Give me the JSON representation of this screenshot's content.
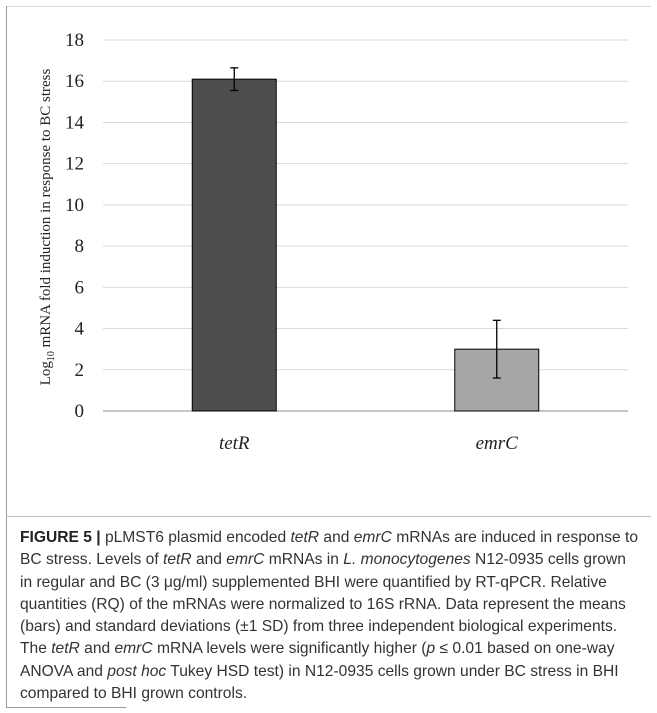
{
  "chart_data": {
    "type": "bar",
    "categories": [
      "tetR",
      "emrC"
    ],
    "values": [
      16.1,
      3.0
    ],
    "errors": [
      0.55,
      1.4
    ],
    "bar_colors": [
      "#4d4d4d",
      "#a6a6a6"
    ],
    "ylim": [
      0,
      18
    ],
    "yticks": [
      "0",
      "2",
      "4",
      "6",
      "8",
      "10",
      "12",
      "14",
      "16",
      "18"
    ],
    "ylabel_prefix": "Log",
    "ylabel_sub": "10",
    "ylabel_rest": " mRNA fold induction in response to BC stress",
    "grid": true
  },
  "caption": {
    "label": "FIGURE 5 |",
    "segments": [
      {
        "text": " pLMST6 plasmid encoded ",
        "italic": false
      },
      {
        "text": "tetR",
        "italic": true
      },
      {
        "text": " and ",
        "italic": false
      },
      {
        "text": "emrC",
        "italic": true
      },
      {
        "text": " mRNAs are induced in response to BC stress. Levels of ",
        "italic": false
      },
      {
        "text": "tetR",
        "italic": true
      },
      {
        "text": " and ",
        "italic": false
      },
      {
        "text": "emrC",
        "italic": true
      },
      {
        "text": " mRNAs in ",
        "italic": false
      },
      {
        "text": "L. monocytogenes",
        "italic": true
      },
      {
        "text": " N12-0935 cells grown in regular and BC (3 μg/ml) supplemented BHI were quantified by RT-qPCR. Relative quantities (RQ) of the mRNAs were normalized to 16S rRNA. Data represent the means (bars) and standard deviations (±1 SD) from three independent biological experiments. The ",
        "italic": false
      },
      {
        "text": "tetR",
        "italic": true
      },
      {
        "text": " and ",
        "italic": false
      },
      {
        "text": "emrC",
        "italic": true
      },
      {
        "text": " mRNA levels were significantly higher (",
        "italic": false
      },
      {
        "text": "p",
        "italic": true
      },
      {
        "text": " ≤ 0.01 based on one-way ANOVA and ",
        "italic": false
      },
      {
        "text": "post hoc",
        "italic": true
      },
      {
        "text": " Tukey HSD test) in N12-0935 cells grown under BC stress in BHI compared to BHI grown controls.",
        "italic": false
      }
    ]
  }
}
